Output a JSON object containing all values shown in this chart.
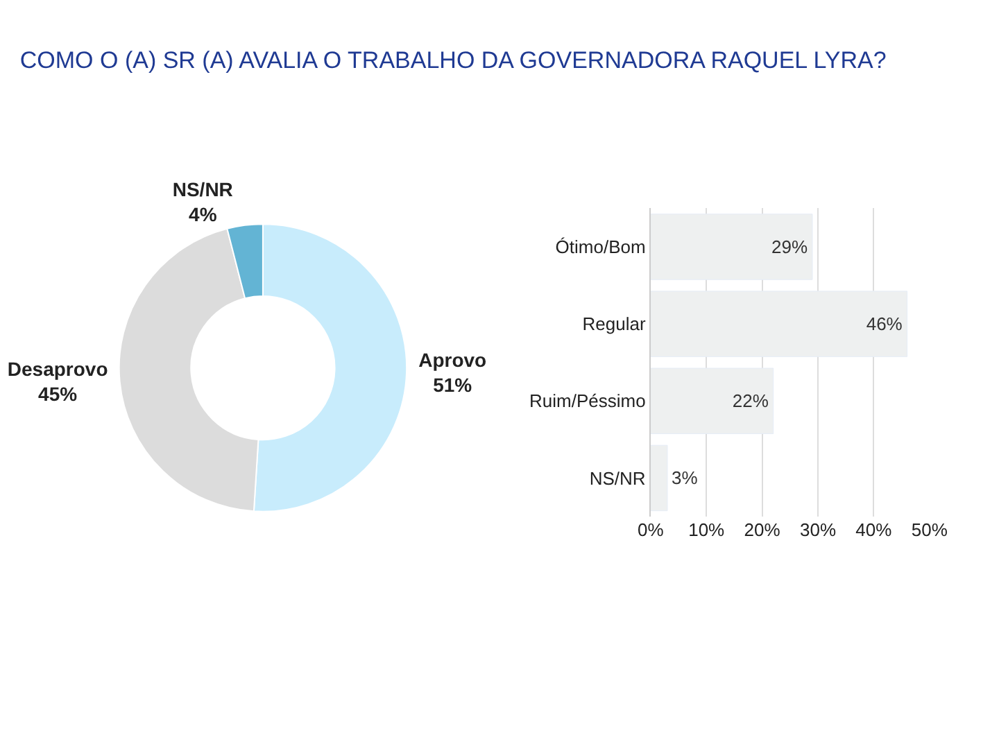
{
  "chart_data": [
    {
      "type": "donut",
      "title": "COMO O (A) SR (A) AVALIA O TRABALHO DA GOVERNADORA RAQUEL LYRA?",
      "categories": [
        "Aprovo",
        "Desaprovo",
        "NS/NR"
      ],
      "values": [
        51,
        45,
        4
      ],
      "colors": [
        "#c8ecfc",
        "#dcdcdc",
        "#63b4d4"
      ],
      "value_labels": [
        "51%",
        "45%",
        "4%"
      ]
    },
    {
      "type": "bar",
      "orientation": "horizontal",
      "categories": [
        "Ótimo/Bom",
        "Regular",
        "Ruim/Péssimo",
        "NS/NR"
      ],
      "values": [
        29,
        46,
        22,
        3
      ],
      "color": "#eef0f0",
      "value_labels": [
        "29%",
        "46%",
        "22%",
        "3%"
      ],
      "xlim": [
        0,
        50
      ],
      "xticks": [
        {
          "value": 0,
          "label": "0%"
        },
        {
          "value": 10,
          "label": "10%"
        },
        {
          "value": 20,
          "label": "20%"
        },
        {
          "value": 30,
          "label": "30%"
        },
        {
          "value": 40,
          "label": "40%"
        },
        {
          "value": 50,
          "label": "50%"
        }
      ],
      "grid": "x"
    }
  ]
}
